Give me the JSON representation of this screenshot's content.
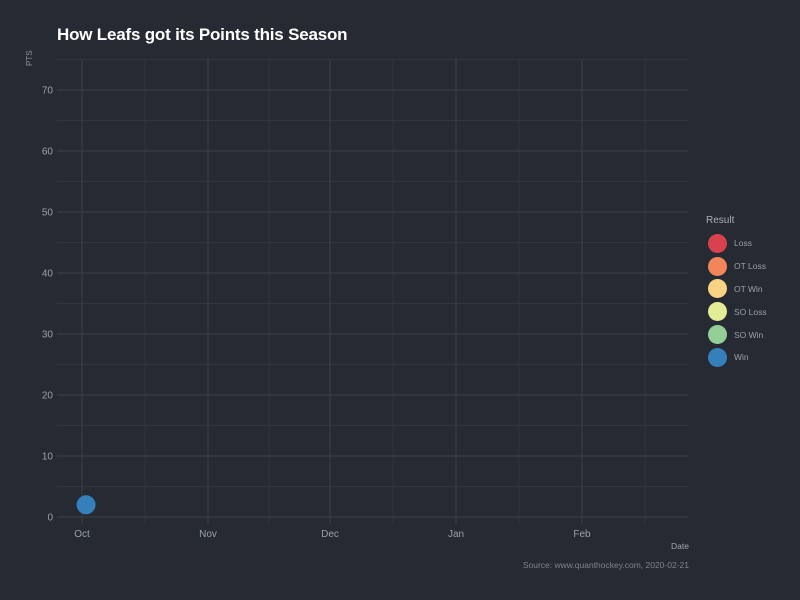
{
  "chart_data": {
    "type": "scatter",
    "title": "How Leafs got its Points this Season",
    "xlabel": "Date",
    "ylabel": "PTS",
    "caption": "Source: www.quanthockey.com, 2020-02-21",
    "x_ticks": [
      "Oct",
      "Nov",
      "Dec",
      "Jan",
      "Feb"
    ],
    "y_ticks": [
      0,
      10,
      20,
      30,
      40,
      50,
      60,
      70
    ],
    "ylim": [
      0,
      75
    ],
    "grid": true,
    "legend": {
      "title": "Result",
      "placement": "right",
      "entries": [
        {
          "label": "Loss",
          "color": "#d7424e"
        },
        {
          "label": "OT Loss",
          "color": "#f2855a"
        },
        {
          "label": "OT Win",
          "color": "#f7d383"
        },
        {
          "label": "SO Loss",
          "color": "#e3ec97"
        },
        {
          "label": "SO Win",
          "color": "#94cf98"
        },
        {
          "label": "Win",
          "color": "#3580ba"
        }
      ]
    },
    "points": [
      {
        "date": "2019-10-02",
        "pts": 2,
        "result": "Win"
      }
    ]
  }
}
